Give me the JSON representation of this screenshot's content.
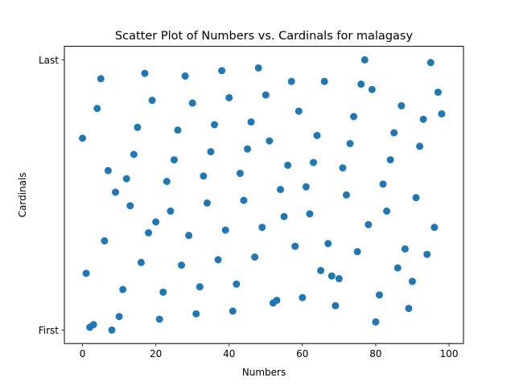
{
  "chart_data": {
    "type": "scatter",
    "title": "Scatter Plot of Numbers vs. Cardinals for malagasy",
    "xlabel": "Numbers",
    "ylabel": "Cardinals",
    "xlim": [
      -4.95,
      103.95
    ],
    "xticks": [
      0,
      20,
      40,
      60,
      80,
      100
    ],
    "ylim": [
      -0.05,
      1.05
    ],
    "yticks": [
      {
        "value": 0,
        "label": "First"
      },
      {
        "value": 1,
        "label": "Last"
      }
    ],
    "grid": false,
    "marker_color": "#1f77b4",
    "series": [
      {
        "x": [
          0,
          1,
          2,
          3,
          4,
          5,
          6,
          7,
          8,
          9,
          10,
          11,
          12,
          13,
          14,
          15,
          16,
          17,
          18,
          19,
          20,
          21,
          22,
          23,
          24,
          25,
          26,
          27,
          28,
          29,
          30,
          31,
          32,
          33,
          34,
          35,
          36,
          37,
          38,
          39,
          40,
          41,
          42,
          43,
          44,
          45,
          46,
          47,
          48,
          49,
          50,
          51,
          52,
          53,
          54,
          55,
          56,
          57,
          58,
          59,
          60,
          61,
          62,
          63,
          64,
          65,
          66,
          67,
          68,
          69,
          70,
          71,
          72,
          73,
          74,
          75,
          76,
          77,
          78,
          79,
          80,
          81,
          82,
          83,
          84,
          85,
          86,
          87,
          88,
          89,
          90,
          91,
          92,
          93,
          94,
          95,
          96,
          97,
          98
        ],
        "y": [
          0.71,
          0.21,
          0.01,
          0.02,
          0.82,
          0.93,
          0.33,
          0.59,
          0.0,
          0.51,
          0.05,
          0.15,
          0.56,
          0.46,
          0.65,
          0.75,
          0.25,
          0.95,
          0.36,
          0.85,
          0.4,
          0.04,
          0.14,
          0.55,
          0.44,
          0.63,
          0.74,
          0.24,
          0.94,
          0.35,
          0.84,
          0.06,
          0.16,
          0.57,
          0.47,
          0.66,
          0.76,
          0.26,
          0.96,
          0.37,
          0.86,
          0.07,
          0.17,
          0.58,
          0.48,
          0.67,
          0.77,
          0.27,
          0.97,
          0.38,
          0.87,
          0.7,
          0.1,
          0.11,
          0.52,
          0.42,
          0.61,
          0.92,
          0.31,
          0.81,
          0.12,
          0.53,
          0.43,
          0.62,
          0.72,
          0.22,
          0.92,
          0.32,
          0.2,
          0.09,
          0.19,
          0.6,
          0.5,
          0.69,
          0.79,
          0.29,
          0.91,
          1.0,
          0.39,
          0.89,
          0.03,
          0.13,
          0.54,
          0.44,
          0.63,
          0.73,
          0.23,
          0.83,
          0.3,
          0.08,
          0.18,
          0.49,
          0.68,
          0.78,
          0.28,
          0.99,
          0.38,
          0.88,
          0.8
        ]
      }
    ]
  }
}
